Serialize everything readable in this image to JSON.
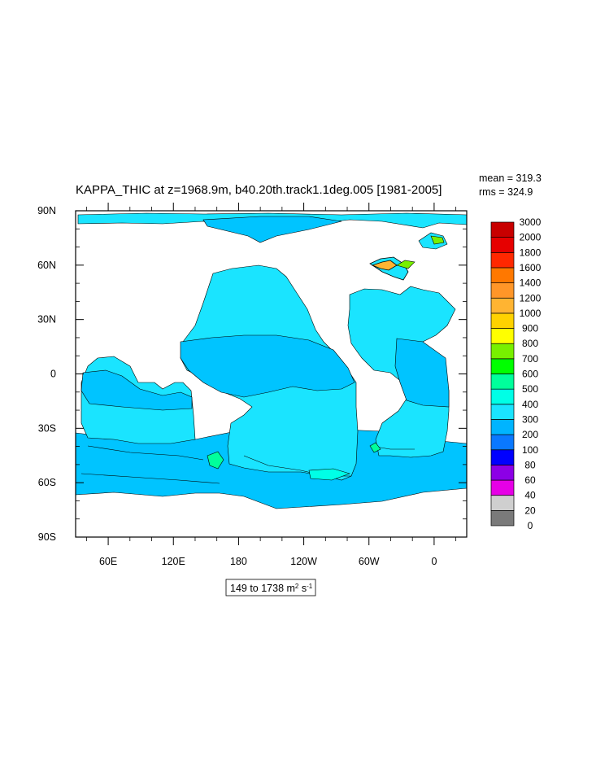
{
  "title": "KAPPA_THIC at z=1968.9m, b40.20th.track1.1deg.005 [1981-2005]",
  "stats": {
    "mean": "mean = 319.3",
    "rms": "rms = 324.9"
  },
  "range_box": {
    "text": "149 to 1738 m",
    "sup1": "2",
    "mid": " s",
    "sup2": "-1"
  },
  "colors": {
    "ocean_main": "#1ae4ff",
    "ocean_band": "#00c4ff",
    "ocean_deep": "#0a9af0",
    "land": "#ffffff",
    "frame": "#000000"
  },
  "chart_data": {
    "type": "heatmap",
    "title": "KAPPA_THIC at z=1968.9m, b40.20th.track1.1deg.005 [1981-2005]",
    "projection": "cylindrical-equidistant",
    "lon_range": [
      30,
      390
    ],
    "lat_range": [
      -90,
      90
    ],
    "lon_ticks": [
      {
        "value": 60,
        "label": "60E"
      },
      {
        "value": 120,
        "label": "120E"
      },
      {
        "value": 180,
        "label": "180"
      },
      {
        "value": 240,
        "label": "120W"
      },
      {
        "value": 300,
        "label": "60W"
      },
      {
        "value": 360,
        "label": "0"
      }
    ],
    "lat_ticks": [
      {
        "value": 90,
        "label": "90N"
      },
      {
        "value": 60,
        "label": "60N"
      },
      {
        "value": 30,
        "label": "30N"
      },
      {
        "value": 0,
        "label": "0"
      },
      {
        "value": -30,
        "label": "30S"
      },
      {
        "value": -60,
        "label": "60S"
      },
      {
        "value": -90,
        "label": "90S"
      }
    ],
    "colorbar": {
      "levels": [
        "0",
        "20",
        "40",
        "60",
        "80",
        "100",
        "200",
        "300",
        "400",
        "500",
        "600",
        "700",
        "800",
        "900",
        "1000",
        "1200",
        "1400",
        "1600",
        "1800",
        "2000",
        "3000"
      ],
      "colors": [
        "#7a7a7a",
        "#cfcfcf",
        "#e600e6",
        "#8c00e6",
        "#0000ff",
        "#0a78ff",
        "#00b4ff",
        "#1ae4ff",
        "#00ffe6",
        "#00ff9b",
        "#00ff00",
        "#78f000",
        "#ffff00",
        "#ffd200",
        "#ffb432",
        "#ff9628",
        "#ff7800",
        "#ff2800",
        "#e60000",
        "#c80000"
      ]
    },
    "summary": {
      "mean": 319.3,
      "rms": 324.9,
      "min": 149,
      "max": 1738,
      "units": "m^2 s^-1"
    }
  }
}
